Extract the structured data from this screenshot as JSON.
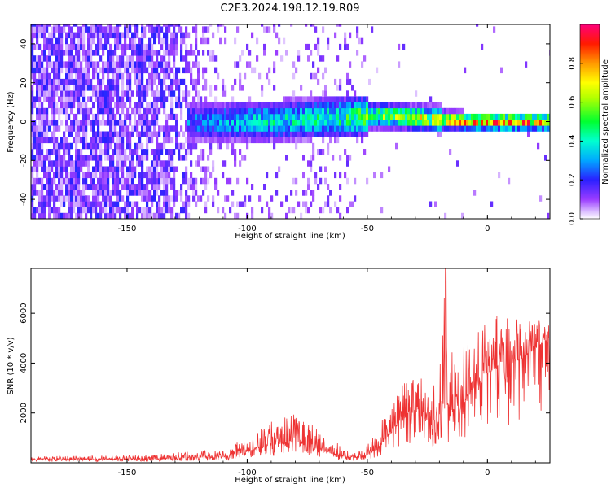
{
  "title": "C2E3.2024.198.12.19.R09",
  "chart_data": [
    {
      "type": "heatmap",
      "xlabel": "Height of straight line (km)",
      "ylabel": "Frequency (Hz)",
      "xlim": [
        -190,
        26
      ],
      "ylim": [
        -50,
        50
      ],
      "x_ticks": [
        -150,
        -100,
        -50,
        0
      ],
      "x_tick_labels": [
        "-150",
        "-100",
        "-50",
        "0"
      ],
      "y_ticks": [
        -40,
        -20,
        0,
        20,
        40
      ],
      "y_tick_labels": [
        "-40",
        "-20",
        "0",
        "20",
        "40"
      ],
      "colorbar": {
        "label": "Normalized spectral amplitude",
        "range": [
          0,
          1
        ],
        "ticks": [
          0.0,
          0.2,
          0.4,
          0.6,
          0.8
        ],
        "tick_labels": [
          "0.0",
          "0.2",
          "0.4",
          "0.6",
          "0.8"
        ],
        "colors": [
          "#ffffff",
          "#cc99ff",
          "#7a00ff",
          "#2a20ff",
          "#00d8ff",
          "#00ff30",
          "#ffff00",
          "#ff9900",
          "#ff0000",
          "#ff007a"
        ]
      },
      "ridge": {
        "description_x": [
          -120,
          -100,
          -80,
          -60,
          -50,
          -40,
          -30,
          -20,
          -10,
          0,
          10,
          20,
          26
        ],
        "peak_frequency_hz": [
          0,
          0,
          1,
          2,
          3,
          3,
          2,
          1,
          0,
          0,
          0,
          0,
          0
        ],
        "peak_amplitude": [
          0.3,
          0.4,
          0.45,
          0.5,
          0.6,
          0.65,
          0.7,
          0.75,
          0.85,
          0.9,
          0.9,
          0.85,
          0.85
        ]
      }
    },
    {
      "type": "line",
      "xlabel": "Height of straight line (km)",
      "ylabel": "SNR (10 * v/v)",
      "xlim": [
        -190,
        26
      ],
      "ylim": [
        0,
        7800
      ],
      "x_ticks": [
        -150,
        -100,
        -50,
        0
      ],
      "x_tick_labels": [
        "-150",
        "-100",
        "-50",
        "0"
      ],
      "y_ticks": [
        2000,
        4000,
        6000
      ],
      "y_tick_labels": [
        "2000",
        "4000",
        "6000"
      ],
      "color": "#ee3333",
      "envelope": {
        "x": [
          -190,
          -140,
          -125,
          -110,
          -100,
          -90,
          -80,
          -70,
          -60,
          -55,
          -50,
          -45,
          -40,
          -35,
          -30,
          -25,
          -20,
          -18,
          -17,
          -15,
          -10,
          -5,
          0,
          5,
          8,
          10,
          15,
          20,
          26
        ],
        "y_base": [
          120,
          130,
          200,
          220,
          450,
          700,
          800,
          550,
          250,
          200,
          300,
          600,
          1200,
          1800,
          2000,
          1700,
          1600,
          2000,
          1800,
          2000,
          2400,
          3000,
          3600,
          3800,
          3200,
          4000,
          4200,
          4600,
          5000
        ],
        "y_peak": [
          250,
          300,
          450,
          500,
          1000,
          1600,
          1900,
          1300,
          600,
          400,
          700,
          1500,
          2400,
          3200,
          3600,
          3000,
          3400,
          7800,
          4500,
          4300,
          4800,
          5500,
          5700,
          5800,
          6200,
          5800,
          5600,
          5800,
          5500
        ]
      }
    }
  ]
}
